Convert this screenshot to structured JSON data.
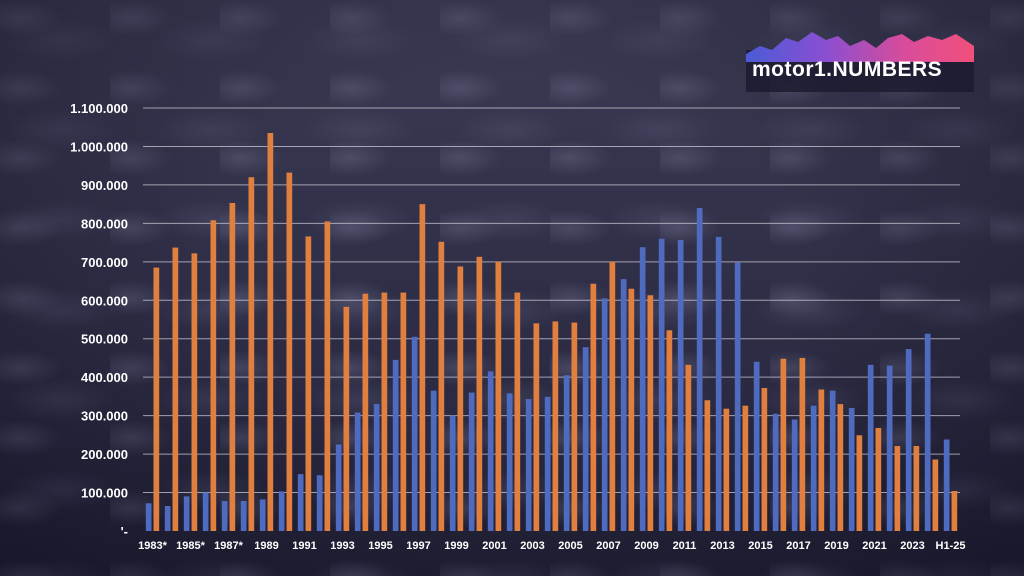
{
  "logo": {
    "text": "motor1.NUMBERS"
  },
  "colors": {
    "series_a": "#4f6bbf",
    "series_b": "#e07f3e",
    "grid": "#c9c9d6",
    "text": "#ffffff"
  },
  "chart_data": {
    "type": "bar",
    "title": "",
    "xlabel": "",
    "ylabel": "",
    "ylim": [
      0,
      1100000
    ],
    "yticks": [
      "'-",
      "100.000",
      "200.000",
      "300.000",
      "400.000",
      "500.000",
      "600.000",
      "700.000",
      "800.000",
      "900.000",
      "1.000.000",
      "1.100.000"
    ],
    "grid": true,
    "legend": "none",
    "categories": [
      "1983*",
      "1984*",
      "1985*",
      "1986*",
      "1987*",
      "1988",
      "1989",
      "1990",
      "1991",
      "1992",
      "1993",
      "1994",
      "1995",
      "1996",
      "1997",
      "1998",
      "1999",
      "2000",
      "2001",
      "2002",
      "2003",
      "2004",
      "2005",
      "2006",
      "2007",
      "2008",
      "2009",
      "2010",
      "2011",
      "2012",
      "2013",
      "2014",
      "2015",
      "2016",
      "2017",
      "2018",
      "2019",
      "2020",
      "2021",
      "2022",
      "2023",
      "2024",
      "H1-25"
    ],
    "category_labels": [
      "1983*",
      "",
      "1985*",
      "",
      "1987*",
      "",
      "1989",
      "",
      "1991",
      "",
      "1993",
      "",
      "1995",
      "",
      "1997",
      "",
      "1999",
      "",
      "2001",
      "",
      "2003",
      "",
      "2005",
      "",
      "2007",
      "",
      "2009",
      "",
      "2011",
      "",
      "2013",
      "",
      "2015",
      "",
      "2017",
      "",
      "2019",
      "",
      "2021",
      "",
      "2023",
      "",
      "H1-25"
    ],
    "series": [
      {
        "values": [
          72000,
          65000,
          90000,
          100000,
          78000,
          78000,
          82000,
          103000,
          148000,
          145000,
          225000,
          308000,
          330000,
          445000,
          505000,
          365000,
          300000,
          360000,
          415000,
          358000,
          343000,
          349000,
          405000,
          478000,
          605000,
          655000,
          738000,
          760000,
          757000,
          840000,
          765000,
          698000,
          440000,
          305000,
          290000,
          326000,
          365000,
          320000,
          432000,
          430000,
          473000,
          513000,
          238000
        ]
      },
      {
        "values": [
          685000,
          737000,
          722000,
          808000,
          853000,
          920000,
          1035000,
          932000,
          766000,
          805000,
          583000,
          617000,
          620000,
          620000,
          850000,
          752000,
          688000,
          713000,
          700000,
          620000,
          540000,
          545000,
          542000,
          643000,
          700000,
          630000,
          613000,
          522000,
          432000,
          340000,
          318000,
          326000,
          372000,
          448000,
          450000,
          368000,
          330000,
          249000,
          268000,
          221000,
          221000,
          186000,
          104000
        ]
      }
    ]
  }
}
